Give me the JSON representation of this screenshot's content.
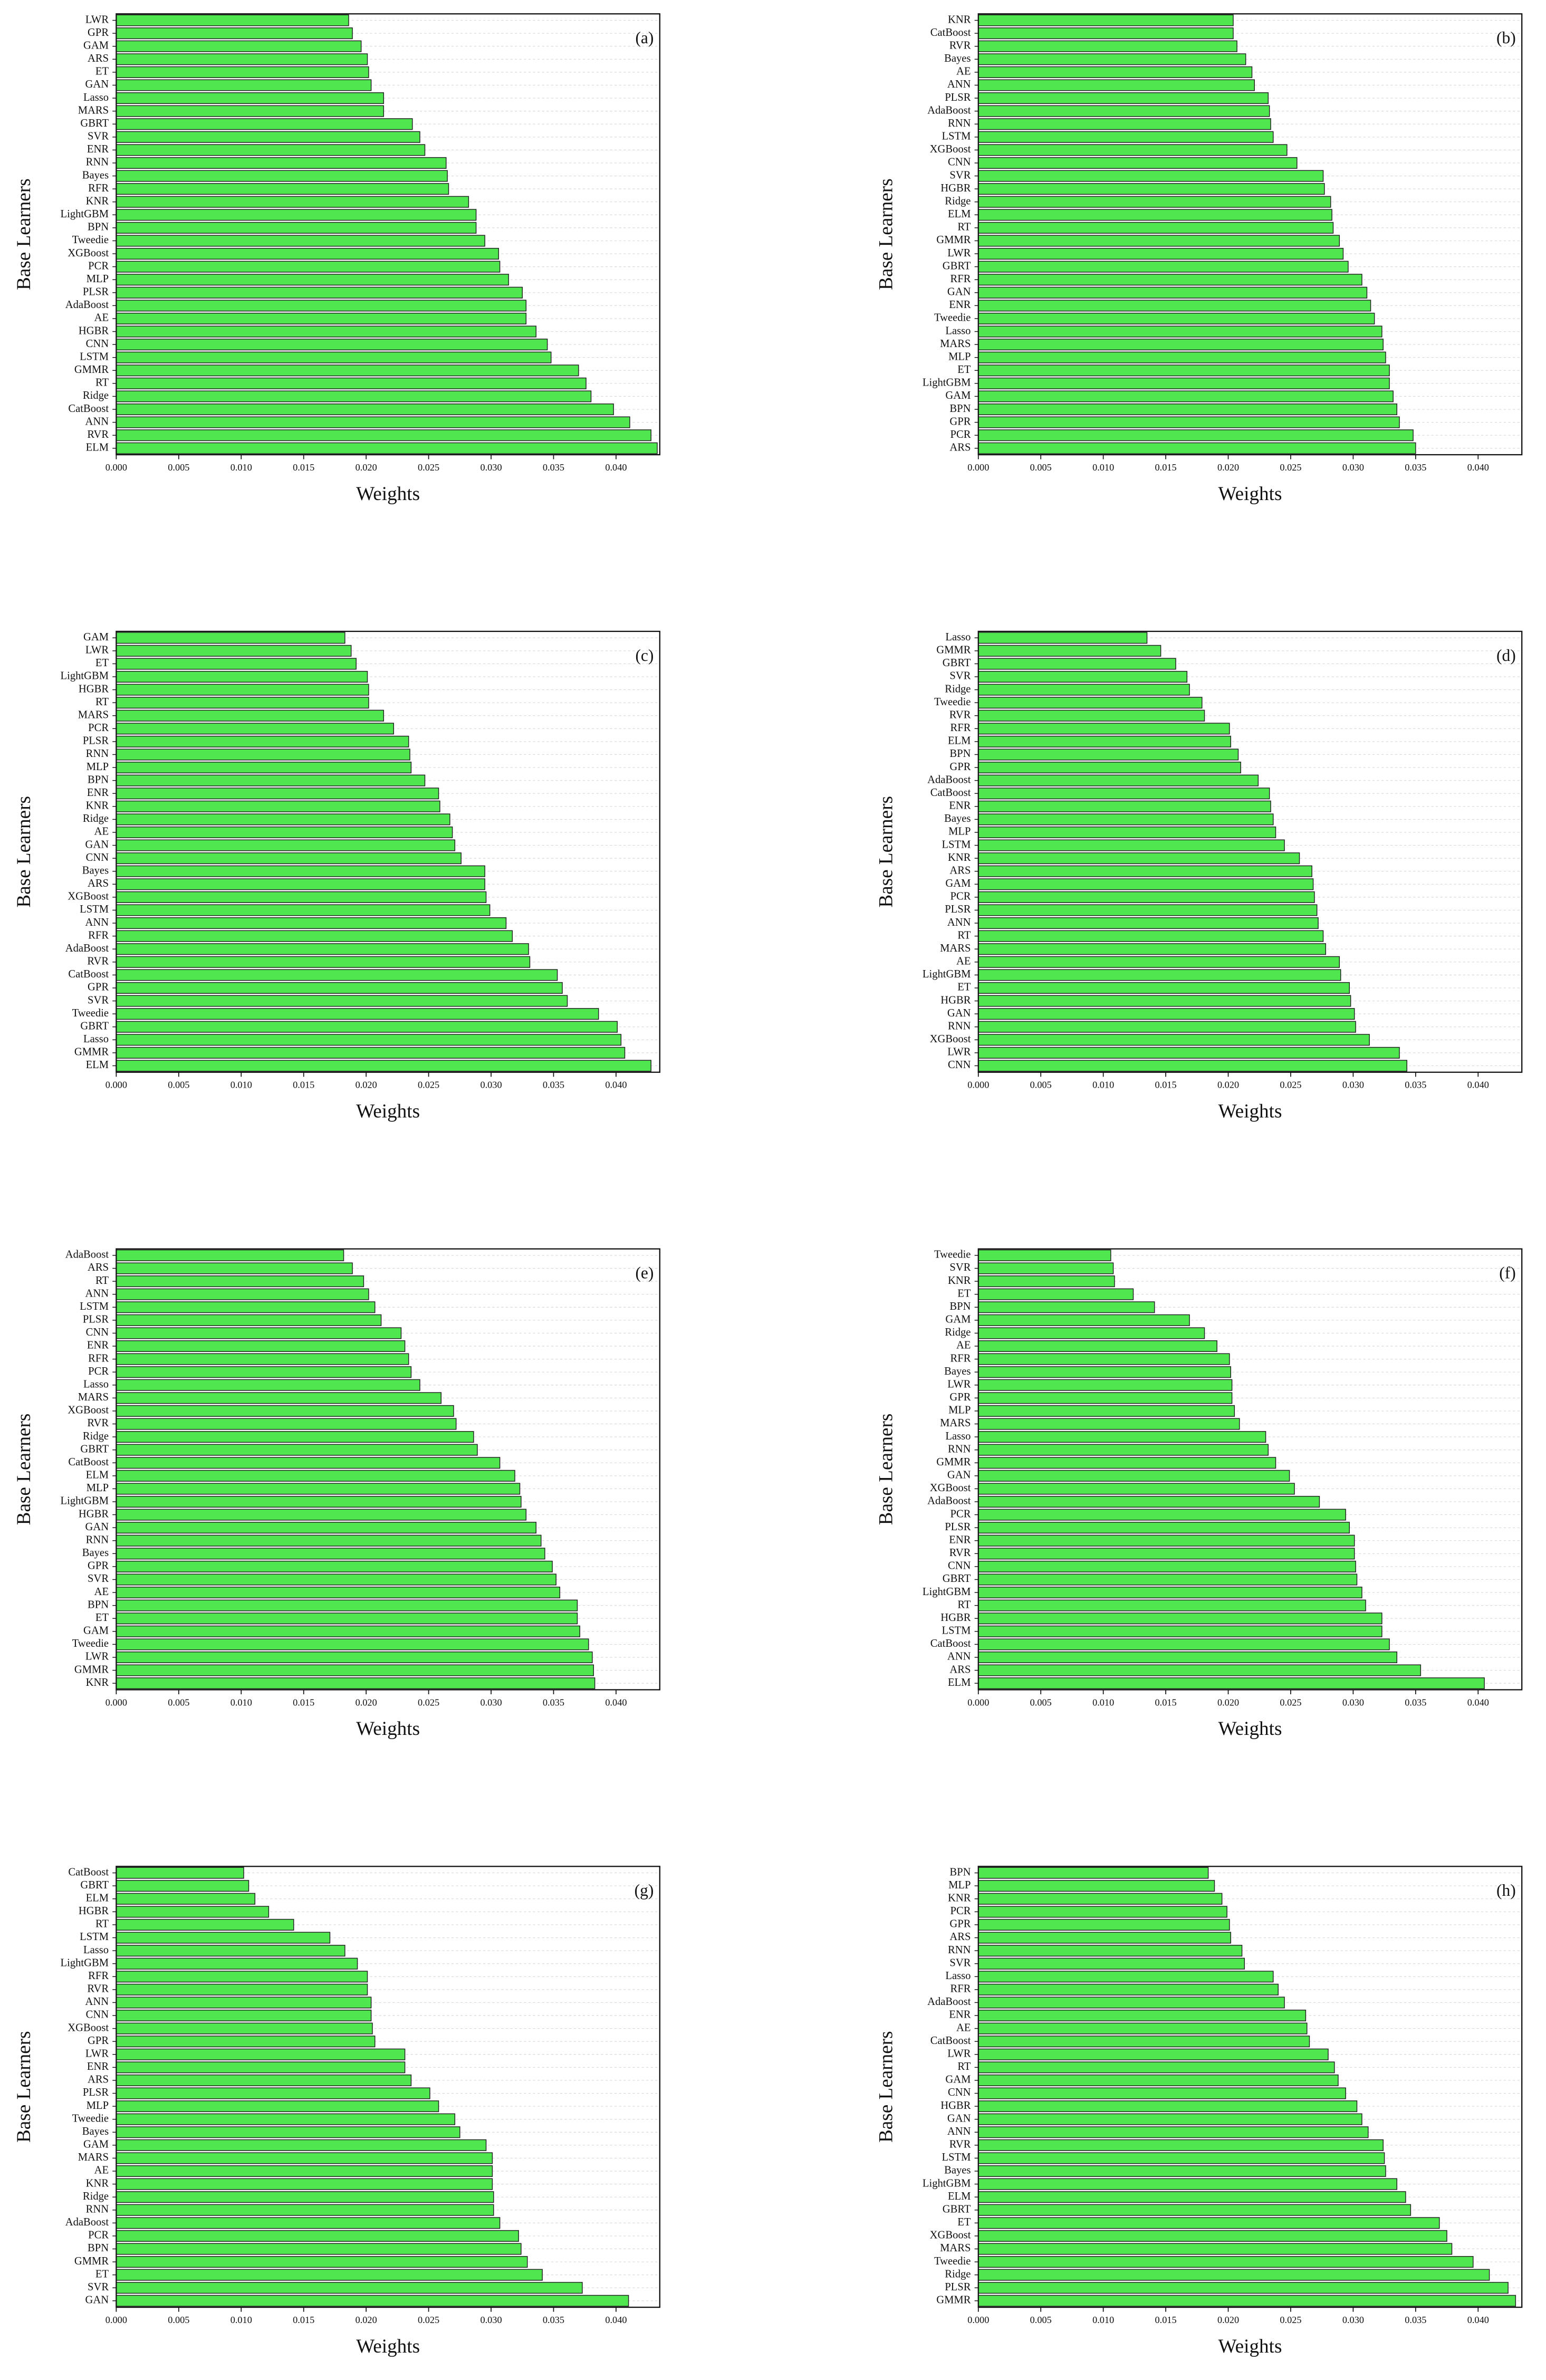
{
  "chart_data": [
    {
      "type": "bar",
      "orientation": "horizontal",
      "panel_label": "(a)",
      "xlabel": "Weights",
      "ylabel": "Base Learners",
      "color": "#50e650",
      "grid": true,
      "categories": [
        "LWR",
        "GPR",
        "GAM",
        "ARS",
        "ET",
        "GAN",
        "Lasso",
        "MARS",
        "GBRT",
        "SVR",
        "ENR",
        "RNN",
        "Bayes",
        "RFR",
        "KNR",
        "LightGBM",
        "BPN",
        "Tweedie",
        "XGBoost",
        "PCR",
        "MLP",
        "PLSR",
        "AdaBoost",
        "AE",
        "HGBR",
        "CNN",
        "LSTM",
        "GMMR",
        "RT",
        "Ridge",
        "CatBoost",
        "ANN",
        "RVR",
        "ELM"
      ],
      "values": [
        0.0186,
        0.0189,
        0.0196,
        0.0201,
        0.0202,
        0.0204,
        0.0214,
        0.0214,
        0.0237,
        0.0243,
        0.0247,
        0.0264,
        0.0265,
        0.0266,
        0.0282,
        0.0288,
        0.0288,
        0.0295,
        0.0306,
        0.0307,
        0.0314,
        0.0325,
        0.0328,
        0.0328,
        0.0336,
        0.0345,
        0.0348,
        0.037,
        0.0376,
        0.038,
        0.0398,
        0.0411,
        0.0428,
        0.0433
      ],
      "xlim": [
        0,
        0.0435
      ],
      "xticks": [
        {
          "value": 0,
          "label": "0.000"
        },
        {
          "value": 0.005,
          "label": "0.005"
        },
        {
          "value": 0.01,
          "label": "0.010"
        },
        {
          "value": 0.015,
          "label": "0.015"
        },
        {
          "value": 0.02,
          "label": "0.020"
        },
        {
          "value": 0.025,
          "label": "0.025"
        },
        {
          "value": 0.03,
          "label": "0.030"
        },
        {
          "value": 0.035,
          "label": "0.035"
        },
        {
          "value": 0.04,
          "label": "0.040"
        }
      ]
    },
    {
      "type": "bar",
      "orientation": "horizontal",
      "panel_label": "(b)",
      "xlabel": "Weights",
      "ylabel": "Base Learners",
      "color": "#50e650",
      "grid": true,
      "categories": [
        "KNR",
        "CatBoost",
        "RVR",
        "Bayes",
        "AE",
        "ANN",
        "PLSR",
        "AdaBoost",
        "RNN",
        "LSTM",
        "XGBoost",
        "CNN",
        "SVR",
        "HGBR",
        "Ridge",
        "ELM",
        "RT",
        "GMMR",
        "LWR",
        "GBRT",
        "RFR",
        "GAN",
        "ENR",
        "Tweedie",
        "Lasso",
        "MARS",
        "MLP",
        "ET",
        "LightGBM",
        "GAM",
        "BPN",
        "GPR",
        "PCR",
        "ARS"
      ],
      "values": [
        0.0204,
        0.0204,
        0.0207,
        0.0214,
        0.0219,
        0.0221,
        0.0232,
        0.0233,
        0.0234,
        0.0236,
        0.0247,
        0.0255,
        0.0276,
        0.0277,
        0.0282,
        0.0283,
        0.0284,
        0.0289,
        0.0292,
        0.0296,
        0.0307,
        0.0311,
        0.0314,
        0.0317,
        0.0323,
        0.0324,
        0.0326,
        0.0329,
        0.0329,
        0.0332,
        0.0335,
        0.0337,
        0.0348,
        0.035
      ],
      "xlim": [
        0,
        0.0435
      ],
      "xticks": [
        {
          "value": 0,
          "label": "0.000"
        },
        {
          "value": 0.005,
          "label": "0.005"
        },
        {
          "value": 0.01,
          "label": "0.010"
        },
        {
          "value": 0.015,
          "label": "0.015"
        },
        {
          "value": 0.02,
          "label": "0.020"
        },
        {
          "value": 0.025,
          "label": "0.025"
        },
        {
          "value": 0.03,
          "label": "0.030"
        },
        {
          "value": 0.035,
          "label": "0.035"
        },
        {
          "value": 0.04,
          "label": "0.040"
        }
      ]
    },
    {
      "type": "bar",
      "orientation": "horizontal",
      "panel_label": "(c)",
      "xlabel": "Weights",
      "ylabel": "Base Learners",
      "color": "#50e650",
      "grid": true,
      "categories": [
        "GAM",
        "LWR",
        "ET",
        "LightGBM",
        "HGBR",
        "RT",
        "MARS",
        "PCR",
        "PLSR",
        "RNN",
        "MLP",
        "BPN",
        "ENR",
        "KNR",
        "Ridge",
        "AE",
        "GAN",
        "CNN",
        "Bayes",
        "ARS",
        "XGBoost",
        "LSTM",
        "ANN",
        "RFR",
        "AdaBoost",
        "RVR",
        "CatBoost",
        "GPR",
        "SVR",
        "Tweedie",
        "GBRT",
        "Lasso",
        "GMMR",
        "ELM"
      ],
      "values": [
        0.0183,
        0.0188,
        0.0192,
        0.0201,
        0.0202,
        0.0202,
        0.0214,
        0.0222,
        0.0234,
        0.0235,
        0.0236,
        0.0247,
        0.0258,
        0.0259,
        0.0267,
        0.0269,
        0.0271,
        0.0276,
        0.0295,
        0.0295,
        0.0296,
        0.0299,
        0.0312,
        0.0317,
        0.033,
        0.0331,
        0.0353,
        0.0357,
        0.0361,
        0.0386,
        0.0401,
        0.0404,
        0.0407,
        0.0428
      ],
      "xlim": [
        0,
        0.0435
      ],
      "xticks": [
        {
          "value": 0,
          "label": "0.000"
        },
        {
          "value": 0.005,
          "label": "0.005"
        },
        {
          "value": 0.01,
          "label": "0.010"
        },
        {
          "value": 0.015,
          "label": "0.015"
        },
        {
          "value": 0.02,
          "label": "0.020"
        },
        {
          "value": 0.025,
          "label": "0.025"
        },
        {
          "value": 0.03,
          "label": "0.030"
        },
        {
          "value": 0.035,
          "label": "0.035"
        },
        {
          "value": 0.04,
          "label": "0.040"
        }
      ]
    },
    {
      "type": "bar",
      "orientation": "horizontal",
      "panel_label": "(d)",
      "xlabel": "Weights",
      "ylabel": "Base Learners",
      "color": "#50e650",
      "grid": true,
      "categories": [
        "Lasso",
        "GMMR",
        "GBRT",
        "SVR",
        "Ridge",
        "Tweedie",
        "RVR",
        "RFR",
        "ELM",
        "BPN",
        "GPR",
        "AdaBoost",
        "CatBoost",
        "ENR",
        "Bayes",
        "MLP",
        "LSTM",
        "KNR",
        "ARS",
        "GAM",
        "PCR",
        "PLSR",
        "ANN",
        "RT",
        "MARS",
        "AE",
        "LightGBM",
        "ET",
        "HGBR",
        "GAN",
        "RNN",
        "XGBoost",
        "LWR",
        "CNN"
      ],
      "values": [
        0.0135,
        0.0146,
        0.0158,
        0.0167,
        0.0169,
        0.0179,
        0.0181,
        0.0201,
        0.0202,
        0.0208,
        0.021,
        0.0224,
        0.0233,
        0.0234,
        0.0236,
        0.0238,
        0.0245,
        0.0257,
        0.0267,
        0.0268,
        0.0269,
        0.0271,
        0.0272,
        0.0276,
        0.0278,
        0.0289,
        0.029,
        0.0297,
        0.0298,
        0.0301,
        0.0302,
        0.0313,
        0.0337,
        0.0343
      ],
      "xlim": [
        0,
        0.0435
      ],
      "xticks": [
        {
          "value": 0,
          "label": "0.000"
        },
        {
          "value": 0.005,
          "label": "0.005"
        },
        {
          "value": 0.01,
          "label": "0.010"
        },
        {
          "value": 0.015,
          "label": "0.015"
        },
        {
          "value": 0.02,
          "label": "0.020"
        },
        {
          "value": 0.025,
          "label": "0.025"
        },
        {
          "value": 0.03,
          "label": "0.030"
        },
        {
          "value": 0.035,
          "label": "0.035"
        },
        {
          "value": 0.04,
          "label": "0.040"
        }
      ]
    },
    {
      "type": "bar",
      "orientation": "horizontal",
      "panel_label": "(e)",
      "xlabel": "Weights",
      "ylabel": "Base Learners",
      "color": "#50e650",
      "grid": true,
      "categories": [
        "AdaBoost",
        "ARS",
        "RT",
        "ANN",
        "LSTM",
        "PLSR",
        "CNN",
        "ENR",
        "RFR",
        "PCR",
        "Lasso",
        "MARS",
        "XGBoost",
        "RVR",
        "Ridge",
        "GBRT",
        "CatBoost",
        "ELM",
        "MLP",
        "LightGBM",
        "HGBR",
        "GAN",
        "RNN",
        "Bayes",
        "GPR",
        "SVR",
        "AE",
        "BPN",
        "ET",
        "GAM",
        "Tweedie",
        "LWR",
        "GMMR",
        "KNR"
      ],
      "values": [
        0.0182,
        0.0189,
        0.0198,
        0.0202,
        0.0207,
        0.0212,
        0.0228,
        0.0231,
        0.0234,
        0.0236,
        0.0243,
        0.026,
        0.027,
        0.0272,
        0.0286,
        0.0289,
        0.0307,
        0.0319,
        0.0323,
        0.0324,
        0.0328,
        0.0336,
        0.034,
        0.0343,
        0.0349,
        0.0352,
        0.0355,
        0.0369,
        0.0369,
        0.0371,
        0.0378,
        0.0381,
        0.0382,
        0.0383
      ],
      "xlim": [
        0,
        0.0435
      ],
      "xticks": [
        {
          "value": 0,
          "label": "0.000"
        },
        {
          "value": 0.005,
          "label": "0.005"
        },
        {
          "value": 0.01,
          "label": "0.010"
        },
        {
          "value": 0.015,
          "label": "0.015"
        },
        {
          "value": 0.02,
          "label": "0.020"
        },
        {
          "value": 0.025,
          "label": "0.025"
        },
        {
          "value": 0.03,
          "label": "0.030"
        },
        {
          "value": 0.035,
          "label": "0.035"
        },
        {
          "value": 0.04,
          "label": "0.040"
        }
      ]
    },
    {
      "type": "bar",
      "orientation": "horizontal",
      "panel_label": "(f)",
      "xlabel": "Weights",
      "ylabel": "Base Learners",
      "color": "#50e650",
      "grid": true,
      "categories": [
        "Tweedie",
        "SVR",
        "KNR",
        "ET",
        "BPN",
        "GAM",
        "Ridge",
        "AE",
        "RFR",
        "Bayes",
        "LWR",
        "GPR",
        "MLP",
        "MARS",
        "Lasso",
        "RNN",
        "GMMR",
        "GAN",
        "XGBoost",
        "AdaBoost",
        "PCR",
        "PLSR",
        "ENR",
        "RVR",
        "CNN",
        "GBRT",
        "LightGBM",
        "RT",
        "HGBR",
        "LSTM",
        "CatBoost",
        "ANN",
        "ARS",
        "ELM"
      ],
      "values": [
        0.0106,
        0.0108,
        0.0109,
        0.0124,
        0.0141,
        0.0169,
        0.0181,
        0.0191,
        0.0201,
        0.0202,
        0.0203,
        0.0203,
        0.0205,
        0.0209,
        0.023,
        0.0232,
        0.0238,
        0.0249,
        0.0253,
        0.0273,
        0.0294,
        0.0297,
        0.0301,
        0.0301,
        0.0302,
        0.0303,
        0.0307,
        0.031,
        0.0323,
        0.0323,
        0.0329,
        0.0335,
        0.0354,
        0.0405
      ],
      "xlim": [
        0,
        0.0435
      ],
      "xticks": [
        {
          "value": 0,
          "label": "0.000"
        },
        {
          "value": 0.005,
          "label": "0.005"
        },
        {
          "value": 0.01,
          "label": "0.010"
        },
        {
          "value": 0.015,
          "label": "0.015"
        },
        {
          "value": 0.02,
          "label": "0.020"
        },
        {
          "value": 0.025,
          "label": "0.025"
        },
        {
          "value": 0.03,
          "label": "0.030"
        },
        {
          "value": 0.035,
          "label": "0.035"
        },
        {
          "value": 0.04,
          "label": "0.040"
        }
      ]
    },
    {
      "type": "bar",
      "orientation": "horizontal",
      "panel_label": "(g)",
      "xlabel": "Weights",
      "ylabel": "Base Learners",
      "color": "#50e650",
      "grid": true,
      "categories": [
        "CatBoost",
        "GBRT",
        "ELM",
        "HGBR",
        "RT",
        "LSTM",
        "Lasso",
        "LightGBM",
        "RFR",
        "RVR",
        "ANN",
        "CNN",
        "XGBoost",
        "GPR",
        "LWR",
        "ENR",
        "ARS",
        "PLSR",
        "MLP",
        "Tweedie",
        "Bayes",
        "GAM",
        "MARS",
        "AE",
        "KNR",
        "Ridge",
        "RNN",
        "AdaBoost",
        "PCR",
        "BPN",
        "GMMR",
        "ET",
        "SVR",
        "GAN"
      ],
      "values": [
        0.0102,
        0.0106,
        0.0111,
        0.0122,
        0.0142,
        0.0171,
        0.0183,
        0.0193,
        0.0201,
        0.0201,
        0.0204,
        0.0204,
        0.0205,
        0.0207,
        0.0231,
        0.0231,
        0.0236,
        0.0251,
        0.0258,
        0.0271,
        0.0275,
        0.0296,
        0.0301,
        0.0301,
        0.0301,
        0.0302,
        0.0302,
        0.0307,
        0.0322,
        0.0324,
        0.0329,
        0.0341,
        0.0373,
        0.041
      ],
      "xlim": [
        0,
        0.0435
      ],
      "xticks": [
        {
          "value": 0,
          "label": "0.000"
        },
        {
          "value": 0.005,
          "label": "0.005"
        },
        {
          "value": 0.01,
          "label": "0.010"
        },
        {
          "value": 0.015,
          "label": "0.015"
        },
        {
          "value": 0.02,
          "label": "0.020"
        },
        {
          "value": 0.025,
          "label": "0.025"
        },
        {
          "value": 0.03,
          "label": "0.030"
        },
        {
          "value": 0.035,
          "label": "0.035"
        },
        {
          "value": 0.04,
          "label": "0.040"
        }
      ]
    },
    {
      "type": "bar",
      "orientation": "horizontal",
      "panel_label": "(h)",
      "xlabel": "Weights",
      "ylabel": "Base Learners",
      "color": "#50e650",
      "grid": true,
      "categories": [
        "BPN",
        "MLP",
        "KNR",
        "PCR",
        "GPR",
        "ARS",
        "RNN",
        "SVR",
        "Lasso",
        "RFR",
        "AdaBoost",
        "ENR",
        "AE",
        "CatBoost",
        "LWR",
        "RT",
        "GAM",
        "CNN",
        "HGBR",
        "GAN",
        "ANN",
        "RVR",
        "LSTM",
        "Bayes",
        "LightGBM",
        "ELM",
        "GBRT",
        "ET",
        "XGBoost",
        "MARS",
        "Tweedie",
        "Ridge",
        "PLSR",
        "GMMR"
      ],
      "values": [
        0.0184,
        0.0189,
        0.0195,
        0.0199,
        0.0201,
        0.0202,
        0.0211,
        0.0213,
        0.0236,
        0.024,
        0.0245,
        0.0262,
        0.0263,
        0.0265,
        0.028,
        0.0285,
        0.0288,
        0.0294,
        0.0303,
        0.0307,
        0.0312,
        0.0324,
        0.0325,
        0.0326,
        0.0335,
        0.0342,
        0.0346,
        0.0369,
        0.0375,
        0.0379,
        0.0396,
        0.0409,
        0.0424,
        0.043
      ],
      "xlim": [
        0,
        0.0435
      ],
      "xticks": [
        {
          "value": 0,
          "label": "0.000"
        },
        {
          "value": 0.005,
          "label": "0.005"
        },
        {
          "value": 0.01,
          "label": "0.010"
        },
        {
          "value": 0.015,
          "label": "0.015"
        },
        {
          "value": 0.02,
          "label": "0.020"
        },
        {
          "value": 0.025,
          "label": "0.025"
        },
        {
          "value": 0.03,
          "label": "0.030"
        },
        {
          "value": 0.035,
          "label": "0.035"
        },
        {
          "value": 0.04,
          "label": "0.040"
        }
      ]
    }
  ]
}
